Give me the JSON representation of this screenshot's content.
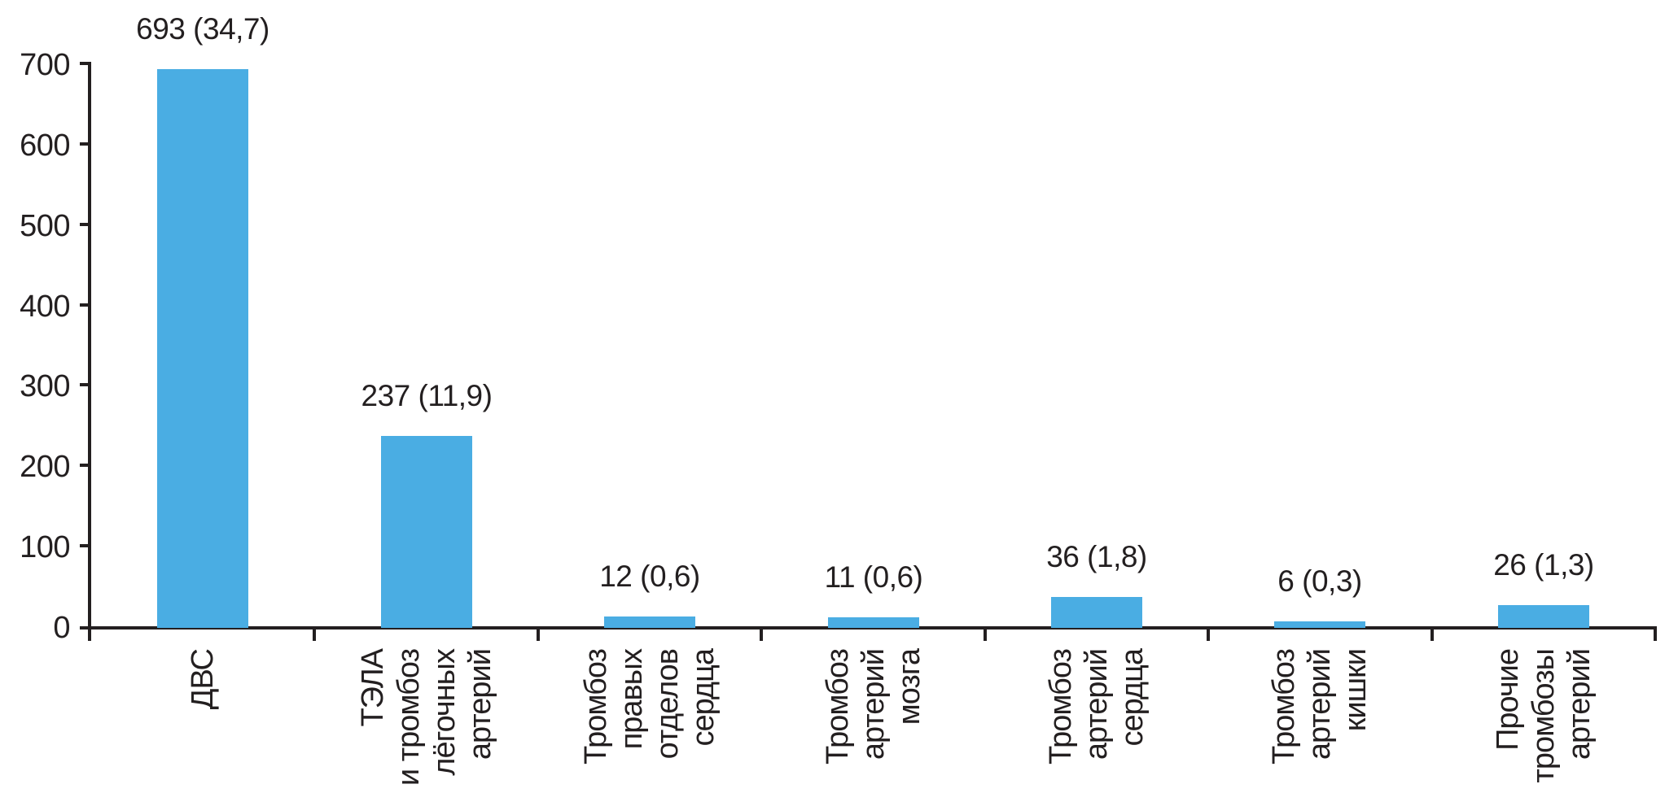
{
  "chart_data": {
    "type": "bar",
    "categories": [
      "ДВС",
      "ТЭЛА\nи тромбоз\nлёгочных\nартерий",
      "Тромбоз\nправых\nотделов\nсердца",
      "Тромбоз\nартерий\nмозга",
      "Тромбоз\nартерий\nсердца",
      "Тромбоз\nартерий\nкишки",
      "Прочие\nтромбозы\nартерий"
    ],
    "values": [
      693,
      237,
      12,
      11,
      36,
      6,
      26
    ],
    "bar_labels": [
      "693 (34,7)",
      "237 (11,9)",
      "12 (0,6)",
      "11 (0,6)",
      "36 (1,8)",
      "6 (0,3)",
      "26 (1,3)"
    ],
    "y_ticks": [
      0,
      100,
      200,
      300,
      400,
      500,
      600,
      700
    ],
    "ylim": [
      0,
      700
    ],
    "xlabel": "",
    "ylabel": "",
    "title": "",
    "grid": false,
    "legend_position": "none",
    "bar_color": "#4AADE3",
    "axis_color": "#231F20",
    "text_color": "#231F20"
  }
}
